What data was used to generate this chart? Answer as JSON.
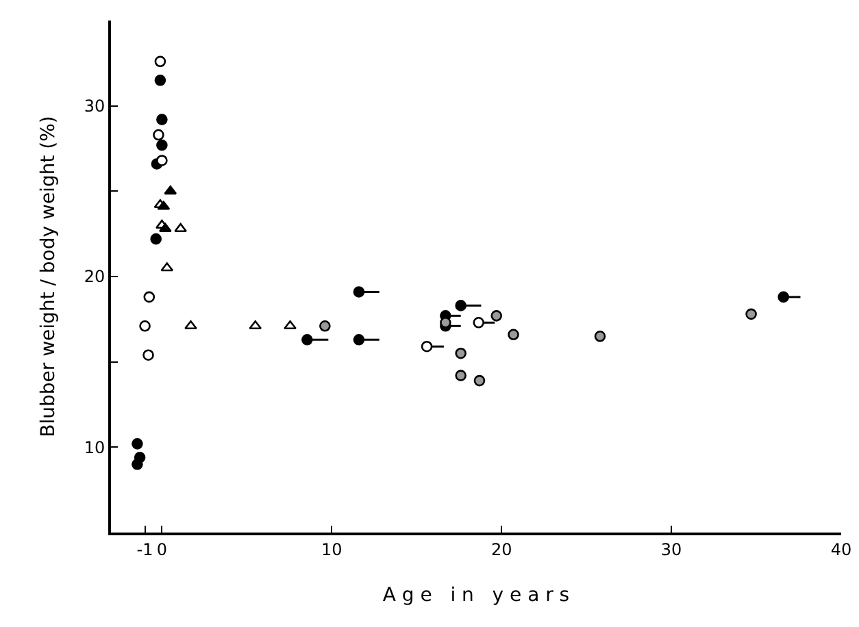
{
  "chart_data": {
    "type": "scatter",
    "xlabel": "A g e   i n   y e a r s",
    "ylabel": "Blubber weight / body weight (%)",
    "xlim": [
      -3,
      40
    ],
    "ylim": [
      5,
      35
    ],
    "xticks": [
      -1,
      0,
      10,
      20,
      30,
      40
    ],
    "yticks": [
      10,
      {
        "value": 15,
        "label": null
      },
      20,
      {
        "value": 25,
        "label": null
      },
      30
    ],
    "grid": false,
    "series": [
      {
        "marker": "circle",
        "color": "#000000",
        "x": [
          -0.1,
          0,
          0,
          -0.3,
          -0.35,
          -1.45,
          -1.3,
          -1.45,
          8.55,
          11.6,
          11.6,
          16.7,
          16.7,
          17.6,
          36.6
        ],
        "values": [
          31.5,
          29.2,
          27.7,
          26.6,
          22.2,
          10.2,
          9.4,
          9.0,
          16.3,
          19.1,
          16.3,
          17.7,
          17.1,
          18.3,
          18.8
        ],
        "xerrors": [
          null,
          null,
          null,
          null,
          null,
          null,
          null,
          null,
          [
            8.55,
            9.8
          ],
          [
            11.6,
            12.8
          ],
          [
            11.6,
            12.8
          ],
          [
            16.7,
            17.6
          ],
          [
            16.7,
            17.6
          ],
          [
            17.6,
            18.8
          ],
          [
            36.6,
            37.6
          ]
        ]
      },
      {
        "marker": "circle",
        "color": "#ffffff",
        "x": [
          -0.1,
          -0.2,
          0,
          -0.75,
          -1.0,
          -0.8,
          15.6,
          18.65
        ],
        "values": [
          32.6,
          28.3,
          26.8,
          18.8,
          17.1,
          15.4,
          15.9,
          17.3
        ],
        "xerrors": [
          null,
          null,
          null,
          null,
          null,
          null,
          [
            15.6,
            16.6
          ],
          [
            18.65,
            19.6
          ]
        ]
      },
      {
        "marker": "circle",
        "color": "#9a9a9a",
        "x": [
          9.6,
          16.7,
          17.6,
          17.6,
          18.7,
          19.7,
          20.7,
          25.8,
          34.7
        ],
        "values": [
          17.1,
          17.3,
          15.5,
          14.2,
          13.9,
          17.7,
          16.6,
          16.5,
          17.8
        ]
      },
      {
        "marker": "triangle",
        "color": "#ffffff",
        "x": [
          -0.1,
          0,
          1.1,
          0.3,
          1.7,
          5.5,
          7.55
        ],
        "values": [
          24.2,
          23.0,
          22.8,
          20.5,
          17.1,
          17.1,
          17.1
        ]
      },
      {
        "marker": "triangle",
        "color": "#000000",
        "x": [
          0.5,
          0.1,
          0.2
        ],
        "values": [
          25.0,
          24.1,
          22.8
        ]
      }
    ]
  }
}
